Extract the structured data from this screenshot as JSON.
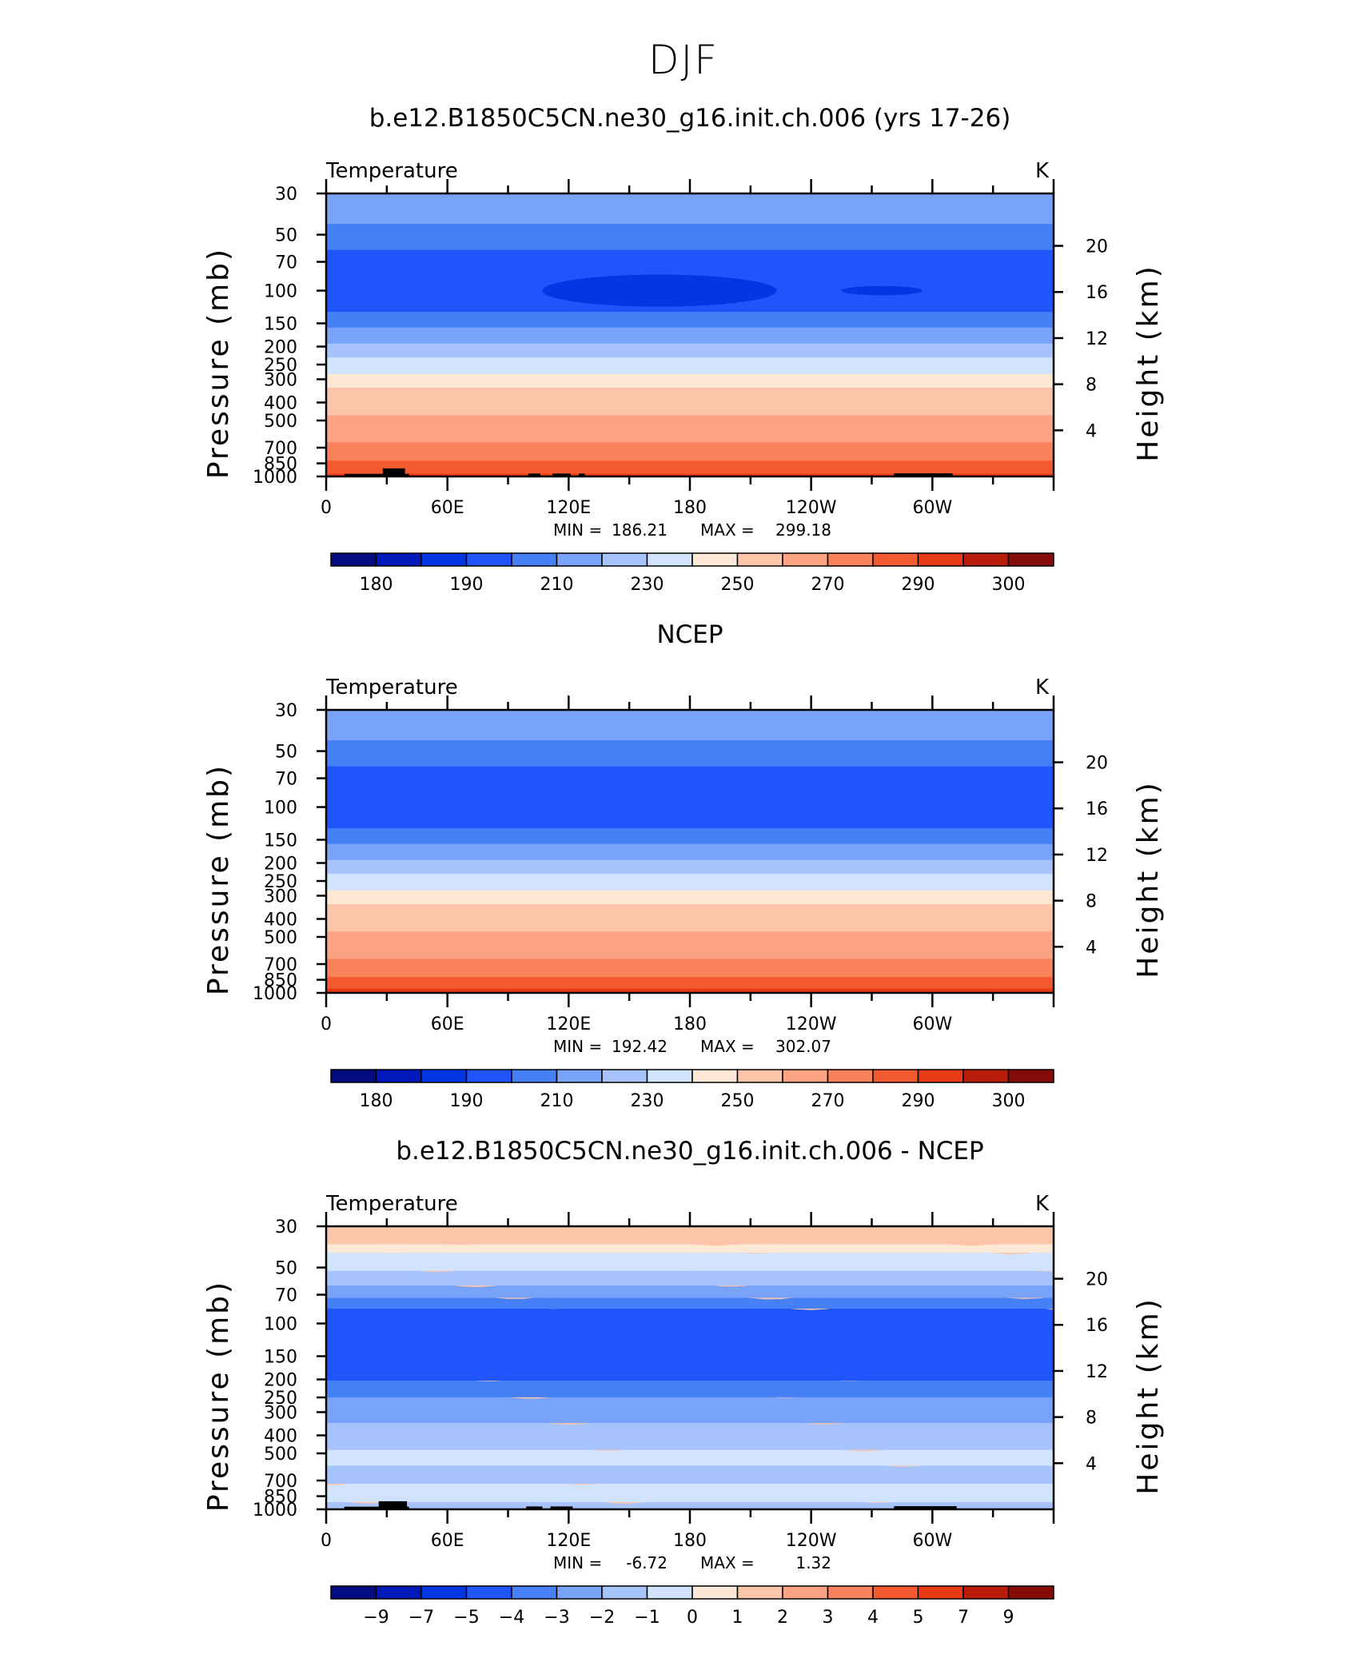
{
  "figure": {
    "title": "DJF"
  },
  "chart_data": [
    {
      "type": "heatmap",
      "title": "b.e12.B1850C5CN.ne30_g16.init.ch.006 (yrs 17-26)",
      "variable": "Temperature",
      "units": "K",
      "xlabel": "",
      "ylabel": "Pressure (mb)",
      "ylabel_right": "Height (km)",
      "x_tick_labels": [
        "0",
        "60E",
        "120E",
        "180",
        "120W",
        "60W"
      ],
      "x_range_deg": [
        0,
        360
      ],
      "y_tick_labels": [
        "30",
        "50",
        "70",
        "100",
        "150",
        "200",
        "250",
        "300",
        "400",
        "500",
        "700",
        "850",
        "1000"
      ],
      "y_range_mb": [
        1000,
        30
      ],
      "y_scale": "log",
      "right_tick_labels": [
        "20",
        "16",
        "12",
        "8",
        "4"
      ],
      "stats": {
        "min_label": "MIN =",
        "min": "186.21",
        "max_label": "MAX =",
        "max": "299.18"
      },
      "colorbar": {
        "labels": [
          "180",
          "190",
          "210",
          "230",
          "250",
          "270",
          "290",
          "300"
        ],
        "colors": [
          "#020c80",
          "#0019b8",
          "#0437e4",
          "#1f55fa",
          "#4580f7",
          "#79a3f9",
          "#a7c3fb",
          "#d2e3fd",
          "#fde7d5",
          "#fcc5aa",
          "#fba383",
          "#f7825b",
          "#f45a2f",
          "#e83a14",
          "#b91c0b",
          "#830b08"
        ]
      },
      "band_boundaries_mb": [
        1000,
        930,
        860,
        790,
        720,
        630,
        530,
        450,
        380,
        320,
        270,
        220,
        185,
        152,
        125,
        58,
        42
      ],
      "band_levels": [
        290,
        285,
        280,
        275,
        270,
        265,
        260,
        255,
        250,
        240,
        230,
        220,
        210,
        200,
        190,
        200,
        210
      ],
      "cold_core": [
        {
          "lon": 165,
          "p_mb": 100,
          "half_width_deg": 58,
          "half_height_mb": 22,
          "level": 185
        },
        {
          "lon": 275,
          "p_mb": 100,
          "half_width_deg": 20,
          "half_height_mb": 6,
          "level": 185
        }
      ],
      "topography": [
        {
          "lon_start": 9,
          "lon_end": 41,
          "p_top_mb": 968
        },
        {
          "lon_start": 28,
          "lon_end": 39,
          "p_top_mb": 905
        },
        {
          "lon_start": 100,
          "lon_end": 106,
          "p_top_mb": 965
        },
        {
          "lon_start": 112,
          "lon_end": 121,
          "p_top_mb": 965
        },
        {
          "lon_start": 125,
          "lon_end": 128,
          "p_top_mb": 965
        },
        {
          "lon_start": 281,
          "lon_end": 310,
          "p_top_mb": 962
        }
      ]
    },
    {
      "type": "heatmap",
      "title": "NCEP",
      "variable": "Temperature",
      "units": "K",
      "xlabel": "",
      "ylabel": "Pressure (mb)",
      "ylabel_right": "Height (km)",
      "x_tick_labels": [
        "0",
        "60E",
        "120E",
        "180",
        "120W",
        "60W"
      ],
      "x_range_deg": [
        0,
        360
      ],
      "y_tick_labels": [
        "30",
        "50",
        "70",
        "100",
        "150",
        "200",
        "250",
        "300",
        "400",
        "500",
        "700",
        "850",
        "1000"
      ],
      "y_range_mb": [
        1000,
        30
      ],
      "y_scale": "log",
      "right_tick_labels": [
        "20",
        "16",
        "12",
        "8",
        "4"
      ],
      "stats": {
        "min_label": "MIN =",
        "min": "192.42",
        "max_label": "MAX =",
        "max": "302.07"
      },
      "colorbar": {
        "labels": [
          "180",
          "190",
          "210",
          "230",
          "250",
          "270",
          "290",
          "300"
        ],
        "colors": [
          "#020c80",
          "#0019b8",
          "#0437e4",
          "#1f55fa",
          "#4580f7",
          "#79a3f9",
          "#a7c3fb",
          "#d2e3fd",
          "#fde7d5",
          "#fcc5aa",
          "#fba383",
          "#f7825b",
          "#f45a2f",
          "#e83a14",
          "#b91c0b",
          "#830b08"
        ]
      },
      "band_boundaries_mb": [
        1000,
        960,
        910,
        860,
        790,
        720,
        630,
        530,
        450,
        380,
        320,
        270,
        220,
        185,
        152,
        125,
        58,
        42
      ],
      "band_levels": [
        300,
        290,
        285,
        280,
        275,
        270,
        265,
        260,
        255,
        250,
        240,
        230,
        220,
        210,
        200,
        190,
        200,
        210
      ],
      "cold_core": [],
      "topography": []
    },
    {
      "type": "heatmap",
      "title": "b.e12.B1850C5CN.ne30_g16.init.ch.006 - NCEP",
      "variable": "Temperature",
      "units": "K",
      "xlabel": "",
      "ylabel": "Pressure (mb)",
      "ylabel_right": "Height (km)",
      "x_tick_labels": [
        "0",
        "60E",
        "120E",
        "180",
        "120W",
        "60W"
      ],
      "x_range_deg": [
        0,
        360
      ],
      "y_tick_labels": [
        "30",
        "50",
        "70",
        "100",
        "150",
        "200",
        "250",
        "300",
        "400",
        "500",
        "700",
        "850",
        "1000"
      ],
      "y_range_mb": [
        1000,
        30
      ],
      "y_scale": "log",
      "right_tick_labels": [
        "20",
        "16",
        "12",
        "8",
        "4"
      ],
      "stats": {
        "min_label": "MIN =",
        "min": "-6.72",
        "max_label": "MAX =",
        "max": "1.32"
      },
      "colorbar": {
        "labels": [
          "−9",
          "−7",
          "−5",
          "−4",
          "−3",
          "−2",
          "−1",
          "0",
          "1",
          "2",
          "3",
          "4",
          "5",
          "7",
          "9"
        ],
        "colors": [
          "#020c80",
          "#0019b8",
          "#0437e4",
          "#1f55fa",
          "#4580f7",
          "#79a3f9",
          "#a7c3fb",
          "#d2e3fd",
          "#fde7d5",
          "#fcc5aa",
          "#fba383",
          "#f7825b",
          "#f45a2f",
          "#e83a14",
          "#b91c0b",
          "#830b08"
        ]
      },
      "band_boundaries_mb": [
        1000,
        960,
        880,
        700,
        560,
        460,
        330,
        240,
        195,
        80,
        70,
        60,
        50,
        40,
        36
      ],
      "band_levels": [
        -1.5,
        -2.5,
        -1.5,
        -2.5,
        -1.5,
        -2.5,
        -3.5,
        -4.5,
        -6,
        -4.5,
        -3.5,
        -2.5,
        -1.5,
        -0.5,
        0.5
      ],
      "topography": [
        {
          "lon_start": 9,
          "lon_end": 41,
          "p_top_mb": 968
        },
        {
          "lon_start": 26,
          "lon_end": 40,
          "p_top_mb": 905
        },
        {
          "lon_start": 99,
          "lon_end": 107,
          "p_top_mb": 965
        },
        {
          "lon_start": 111,
          "lon_end": 122,
          "p_top_mb": 965
        },
        {
          "lon_start": 281,
          "lon_end": 312,
          "p_top_mb": 962
        }
      ]
    }
  ]
}
